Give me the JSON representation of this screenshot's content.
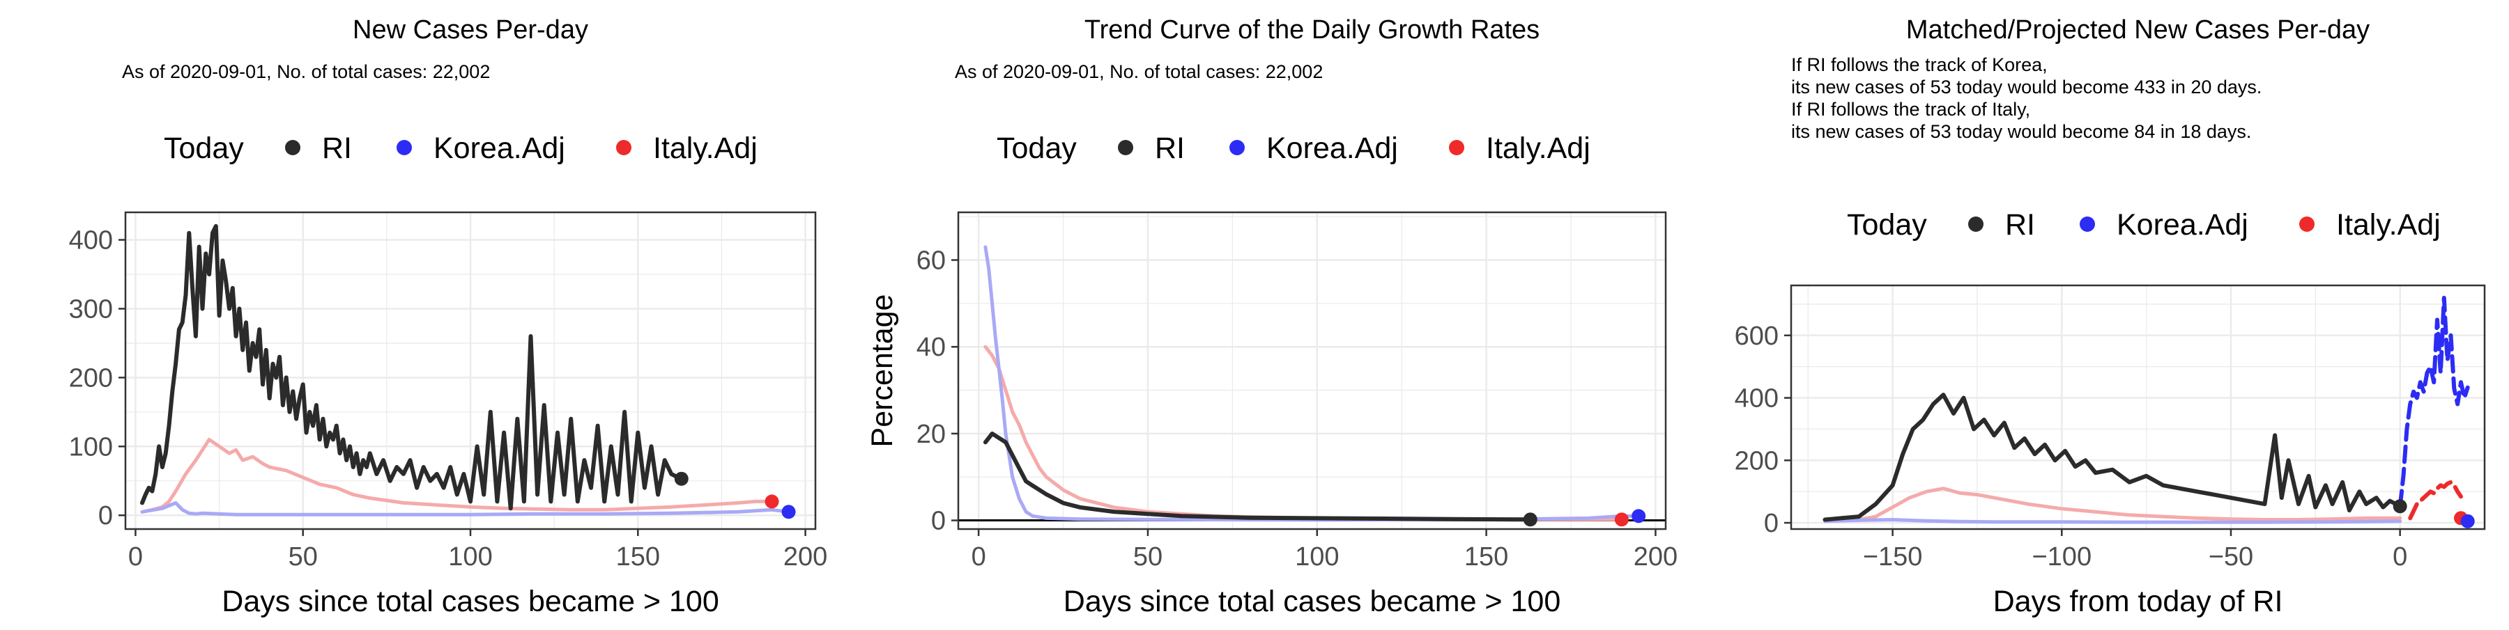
{
  "colors": {
    "ri": "#2b2b2b",
    "korea": "#2c2cf5",
    "italy": "#ee2a2a",
    "korea_light": "#a9a9f6",
    "italy_light": "#f5aaaa",
    "grid": "#ebebeb",
    "panel_border": "#333333"
  },
  "chart_data": [
    {
      "type": "line",
      "title": "New Cases Per-day",
      "subtitle": "As of 2020-09-01, No. of total cases: 22,002",
      "legend": {
        "placement": "top",
        "title": "Today",
        "items": [
          "RI",
          "Korea.Adj",
          "Italy.Adj"
        ]
      },
      "xlabel": "Days since total cases became > 100",
      "ylabel": "",
      "xlim": [
        -3,
        203
      ],
      "ylim": [
        -20,
        440
      ],
      "xticks": [
        0,
        50,
        100,
        150,
        200
      ],
      "yticks": [
        0,
        100,
        200,
        300,
        400
      ],
      "grid": true,
      "series": [
        {
          "name": "RI",
          "x": [
            2,
            3,
            4,
            5,
            6,
            7,
            8,
            9,
            10,
            11,
            12,
            13,
            14,
            15,
            16,
            17,
            18,
            19,
            20,
            21,
            22,
            23,
            24,
            25,
            26,
            27,
            28,
            29,
            30,
            31,
            32,
            33,
            34,
            35,
            36,
            37,
            38,
            39,
            40,
            41,
            42,
            43,
            44,
            45,
            46,
            47,
            48,
            49,
            50,
            51,
            52,
            53,
            54,
            55,
            56,
            57,
            58,
            59,
            60,
            61,
            62,
            63,
            64,
            65,
            66,
            67,
            68,
            69,
            70,
            72,
            74,
            76,
            78,
            80,
            82,
            84,
            86,
            88,
            90,
            92,
            94,
            96,
            98,
            100,
            102,
            104,
            106,
            108,
            110,
            112,
            114,
            116,
            118,
            120,
            122,
            124,
            126,
            128,
            130,
            132,
            134,
            136,
            138,
            140,
            142,
            144,
            146,
            148,
            150,
            152,
            154,
            156,
            158,
            160,
            162,
            163
          ],
          "y": [
            18,
            30,
            40,
            35,
            60,
            100,
            70,
            90,
            130,
            180,
            220,
            270,
            280,
            320,
            410,
            330,
            260,
            390,
            300,
            380,
            350,
            410,
            420,
            290,
            370,
            340,
            300,
            330,
            260,
            300,
            240,
            280,
            210,
            250,
            230,
            270,
            190,
            240,
            170,
            220,
            200,
            230,
            160,
            200,
            150,
            180,
            140,
            170,
            190,
            120,
            150,
            130,
            160,
            110,
            140,
            100,
            120,
            110,
            130,
            90,
            110,
            80,
            100,
            70,
            90,
            60,
            80,
            70,
            90,
            60,
            80,
            50,
            70,
            60,
            80,
            40,
            70,
            50,
            60,
            40,
            70,
            30,
            60,
            20,
            100,
            30,
            150,
            20,
            120,
            10,
            140,
            20,
            260,
            30,
            160,
            20,
            120,
            30,
            140,
            20,
            80,
            40,
            130,
            20,
            100,
            30,
            150,
            20,
            120,
            40,
            100,
            30,
            80,
            60,
            55,
            53
          ],
          "role": "main"
        },
        {
          "name": "Italy.Adj",
          "x": [
            2,
            5,
            8,
            10,
            12,
            15,
            18,
            20,
            22,
            25,
            28,
            30,
            32,
            35,
            38,
            40,
            45,
            50,
            55,
            60,
            65,
            70,
            80,
            90,
            100,
            110,
            120,
            130,
            140,
            150,
            160,
            170,
            180,
            185,
            190
          ],
          "y": [
            5,
            8,
            12,
            20,
            35,
            60,
            80,
            95,
            110,
            100,
            90,
            95,
            80,
            85,
            75,
            70,
            65,
            55,
            45,
            40,
            30,
            25,
            18,
            15,
            12,
            10,
            9,
            8,
            8,
            10,
            12,
            15,
            18,
            20,
            20
          ],
          "role": "faded"
        },
        {
          "name": "Korea.Adj",
          "x": [
            2,
            8,
            12,
            14,
            16,
            18,
            20,
            25,
            30,
            40,
            60,
            80,
            100,
            120,
            140,
            160,
            180,
            190,
            195
          ],
          "y": [
            5,
            10,
            18,
            8,
            3,
            2,
            3,
            2,
            1,
            1,
            1,
            1,
            1,
            2,
            2,
            3,
            5,
            8,
            5
          ],
          "role": "faded"
        }
      ],
      "today_points": [
        {
          "name": "RI",
          "x": 163,
          "y": 53
        },
        {
          "name": "Italy.Adj",
          "x": 190,
          "y": 20
        },
        {
          "name": "Korea.Adj",
          "x": 195,
          "y": 5
        }
      ]
    },
    {
      "type": "line",
      "title": "Trend Curve of the Daily Growth Rates",
      "subtitle": "As of 2020-09-01, No. of total cases: 22,002",
      "legend": {
        "placement": "top",
        "title": "Today",
        "items": [
          "RI",
          "Korea.Adj",
          "Italy.Adj"
        ]
      },
      "xlabel": "Days since total cases became > 100",
      "ylabel": "Percentage",
      "xlim": [
        -6,
        203
      ],
      "ylim": [
        -2,
        71
      ],
      "xticks": [
        0,
        50,
        100,
        150,
        200
      ],
      "yticks": [
        0,
        20,
        40,
        60
      ],
      "grid": true,
      "hline": 0,
      "series": [
        {
          "name": "RI",
          "x": [
            2,
            4,
            6,
            8,
            10,
            12,
            14,
            16,
            18,
            20,
            25,
            30,
            35,
            40,
            50,
            60,
            70,
            80,
            100,
            120,
            140,
            160,
            163
          ],
          "y": [
            18,
            20,
            19,
            18,
            15,
            12,
            9,
            8,
            7,
            6,
            4,
            3,
            2.5,
            2,
            1.5,
            1,
            0.8,
            0.6,
            0.5,
            0.4,
            0.3,
            0.2,
            0.2
          ],
          "role": "main"
        },
        {
          "name": "Italy.Adj",
          "x": [
            2,
            4,
            6,
            8,
            10,
            12,
            14,
            16,
            18,
            20,
            25,
            30,
            35,
            40,
            45,
            50,
            60,
            70,
            80,
            100,
            130,
            160,
            190
          ],
          "y": [
            40,
            38,
            35,
            30,
            25,
            22,
            18,
            15,
            12,
            10,
            7,
            5,
            4,
            3,
            2.5,
            2,
            1.5,
            1,
            0.8,
            0.5,
            0.3,
            0.2,
            0.2
          ],
          "role": "faded"
        },
        {
          "name": "Korea.Adj",
          "x": [
            2,
            3,
            4,
            5,
            6,
            7,
            8,
            10,
            12,
            14,
            16,
            20,
            30,
            50,
            100,
            150,
            180,
            190,
            195
          ],
          "y": [
            63,
            58,
            50,
            42,
            35,
            28,
            20,
            10,
            5,
            2,
            1,
            0.5,
            0.3,
            0.2,
            0.1,
            0.2,
            0.5,
            1,
            1
          ],
          "role": "faded"
        }
      ],
      "today_points": [
        {
          "name": "RI",
          "x": 163,
          "y": 0.2
        },
        {
          "name": "Italy.Adj",
          "x": 190,
          "y": 0.2
        },
        {
          "name": "Korea.Adj",
          "x": 195,
          "y": 1
        }
      ]
    },
    {
      "type": "line",
      "title": "Matched/Projected New Cases Per-day",
      "subtitle_lines": [
        "If RI follows the track of Korea,",
        "its new cases of 53 today would become 433 in 20 days.",
        "If RI follows the track of Italy,",
        "its new cases of 53 today would become 84 in 18 days."
      ],
      "legend": {
        "placement": "top",
        "title": "Today",
        "items": [
          "RI",
          "Korea.Adj",
          "Italy.Adj"
        ]
      },
      "xlabel": "Days from today of RI",
      "ylabel": "",
      "xlim": [
        -180,
        25
      ],
      "ylim": [
        -20,
        760
      ],
      "xticks": [
        -150,
        -100,
        -50,
        0
      ],
      "yticks": [
        0,
        200,
        400,
        600
      ],
      "grid": true,
      "series": [
        {
          "name": "RI",
          "x": [
            -170,
            -165,
            -160,
            -155,
            -150,
            -147,
            -144,
            -141,
            -138,
            -135,
            -132,
            -129,
            -126,
            -123,
            -120,
            -117,
            -114,
            -111,
            -108,
            -105,
            -102,
            -99,
            -96,
            -93,
            -90,
            -85,
            -80,
            -75,
            -70,
            -65,
            -60,
            -55,
            -50,
            -45,
            -40,
            -37,
            -35,
            -33,
            -30,
            -27,
            -25,
            -22,
            -20,
            -17,
            -15,
            -12,
            -10,
            -7,
            -5,
            -3,
            0
          ],
          "y": [
            10,
            15,
            20,
            60,
            120,
            220,
            300,
            330,
            380,
            410,
            350,
            400,
            300,
            330,
            280,
            320,
            240,
            270,
            220,
            250,
            200,
            230,
            180,
            200,
            160,
            170,
            130,
            150,
            120,
            110,
            100,
            90,
            80,
            70,
            60,
            280,
            80,
            200,
            60,
            150,
            50,
            120,
            60,
            130,
            40,
            100,
            60,
            80,
            50,
            70,
            53
          ],
          "role": "main"
        },
        {
          "name": "Italy.Adj",
          "x": [
            -170,
            -160,
            -155,
            -150,
            -145,
            -140,
            -135,
            -130,
            -125,
            -120,
            -110,
            -100,
            -90,
            -80,
            -70,
            -60,
            -50,
            -40,
            -30,
            -20,
            -10,
            0
          ],
          "y": [
            5,
            10,
            20,
            50,
            80,
            100,
            110,
            95,
            90,
            80,
            60,
            45,
            35,
            25,
            20,
            15,
            12,
            10,
            10,
            12,
            15,
            15
          ],
          "role": "faded"
        },
        {
          "name": "Korea.Adj",
          "x": [
            -170,
            -160,
            -150,
            -140,
            -130,
            -120,
            -100,
            -80,
            -60,
            -40,
            -20,
            0
          ],
          "y": [
            5,
            8,
            10,
            6,
            4,
            3,
            3,
            2,
            2,
            2,
            3,
            5
          ],
          "role": "faded"
        },
        {
          "name": "Korea.Adj",
          "x": [
            0,
            1,
            2,
            3,
            4,
            5,
            6,
            7,
            8,
            9,
            10,
            11,
            12,
            13,
            14,
            15,
            16,
            17,
            18,
            19,
            20
          ],
          "y": [
            53,
            150,
            300,
            380,
            420,
            400,
            450,
            420,
            480,
            500,
            450,
            650,
            480,
            720,
            520,
            600,
            430,
            380,
            450,
            400,
            433
          ],
          "role": "projection"
        },
        {
          "name": "Italy.Adj",
          "x": [
            3,
            5,
            7,
            8,
            9,
            10,
            11,
            12,
            13,
            14,
            15,
            16,
            17,
            18
          ],
          "y": [
            15,
            60,
            80,
            90,
            100,
            95,
            110,
            120,
            115,
            125,
            130,
            120,
            100,
            84
          ],
          "role": "projection"
        }
      ],
      "today_points": [
        {
          "name": "RI",
          "x": 0,
          "y": 53
        },
        {
          "name": "Italy.Adj",
          "x": 18,
          "y": 15
        },
        {
          "name": "Korea.Adj",
          "x": 20,
          "y": 5
        }
      ]
    }
  ]
}
